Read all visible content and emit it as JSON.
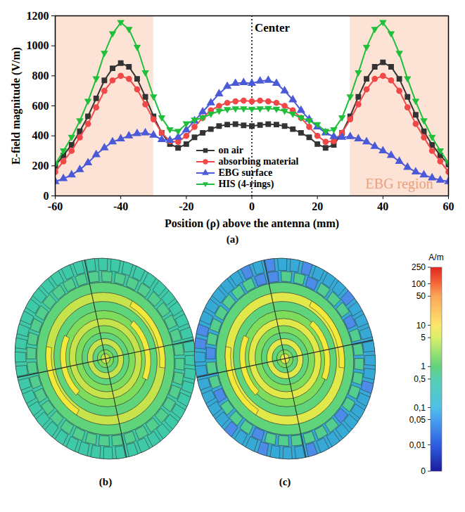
{
  "chart_data": {
    "type": "line",
    "xlabel": "Position (ρ) above the antenna (mm)",
    "ylabel": "E-field magnitude (V/m)",
    "x": [
      -60,
      -57.5,
      -55,
      -52.5,
      -50,
      -47.5,
      -45,
      -42.5,
      -40,
      -37.5,
      -35,
      -32.5,
      -30,
      -27.5,
      -25,
      -22.5,
      -20,
      -17.5,
      -15,
      -12.5,
      -10,
      -7.5,
      -5,
      -2.5,
      0,
      2.5,
      5,
      7.5,
      10,
      12.5,
      15,
      17.5,
      20,
      22.5,
      25,
      27.5,
      30,
      32.5,
      35,
      37.5,
      40,
      42.5,
      45,
      47.5,
      50,
      52.5,
      55,
      57.5,
      60
    ],
    "series": [
      {
        "name": "on air",
        "color": "#333333",
        "marker": "square",
        "values": [
          200,
          270,
          340,
          430,
          530,
          650,
          770,
          850,
          885,
          860,
          780,
          660,
          530,
          420,
          345,
          320,
          345,
          390,
          420,
          445,
          465,
          475,
          478,
          470,
          465,
          472,
          478,
          475,
          465,
          445,
          420,
          390,
          345,
          320,
          340,
          420,
          530,
          660,
          780,
          860,
          890,
          860,
          780,
          660,
          540,
          430,
          340,
          270,
          210
        ]
      },
      {
        "name": "absorbing material",
        "color": "#f04848",
        "marker": "circle",
        "values": [
          160,
          230,
          300,
          390,
          480,
          590,
          700,
          770,
          800,
          780,
          710,
          610,
          510,
          420,
          365,
          360,
          400,
          460,
          520,
          570,
          600,
          620,
          630,
          635,
          630,
          635,
          630,
          620,
          600,
          570,
          520,
          460,
          400,
          360,
          365,
          420,
          510,
          610,
          710,
          780,
          800,
          770,
          700,
          590,
          480,
          390,
          300,
          230,
          160
        ]
      },
      {
        "name": "EBG surface",
        "color": "#4a5ad8",
        "marker": "triangle",
        "values": [
          95,
          115,
          140,
          175,
          220,
          275,
          320,
          360,
          380,
          400,
          415,
          420,
          405,
          375,
          370,
          390,
          440,
          500,
          560,
          620,
          680,
          730,
          750,
          755,
          750,
          765,
          770,
          750,
          700,
          640,
          570,
          510,
          460,
          420,
          395,
          390,
          395,
          380,
          360,
          330,
          300,
          270,
          230,
          190,
          160,
          140,
          120,
          105,
          95
        ]
      },
      {
        "name": "HIS (4-rings)",
        "color": "#1fbf3b",
        "marker": "triangle-down",
        "values": [
          210,
          300,
          390,
          500,
          630,
          780,
          950,
          1080,
          1155,
          1110,
          990,
          820,
          660,
          520,
          440,
          430,
          480,
          505,
          520,
          545,
          565,
          575,
          580,
          580,
          578,
          580,
          582,
          578,
          565,
          545,
          520,
          500,
          475,
          430,
          440,
          520,
          660,
          820,
          990,
          1110,
          1155,
          1080,
          950,
          780,
          630,
          500,
          390,
          300,
          220
        ]
      }
    ],
    "xlim": [
      -60,
      60
    ],
    "xticks": [
      -60,
      -40,
      -20,
      0,
      20,
      40,
      60
    ],
    "ylim": [
      0,
      1200
    ],
    "yticks": [
      0,
      200,
      400,
      600,
      800,
      1000,
      1200
    ],
    "grid": false,
    "legend": "bottom",
    "annotations": [
      {
        "text": "Center",
        "x": 0,
        "line_style": "dotted"
      },
      {
        "text": "EBG region",
        "regions": [
          [
            -60,
            -30
          ],
          [
            30,
            60
          ]
        ]
      }
    ]
  },
  "panel_labels": [
    "(a)",
    "(b)",
    "(c)"
  ],
  "colorbar": {
    "label": "A/m",
    "range": [
      0,
      250
    ],
    "ticks": [
      250,
      100,
      50,
      10,
      5,
      1,
      {
        "value": 0.5,
        "label": "0,5"
      },
      {
        "value": 0.1,
        "label": "0,1"
      },
      {
        "value": 0.05,
        "label": "0,05"
      },
      {
        "value": 0.01,
        "label": "0,01"
      },
      0
    ]
  }
}
